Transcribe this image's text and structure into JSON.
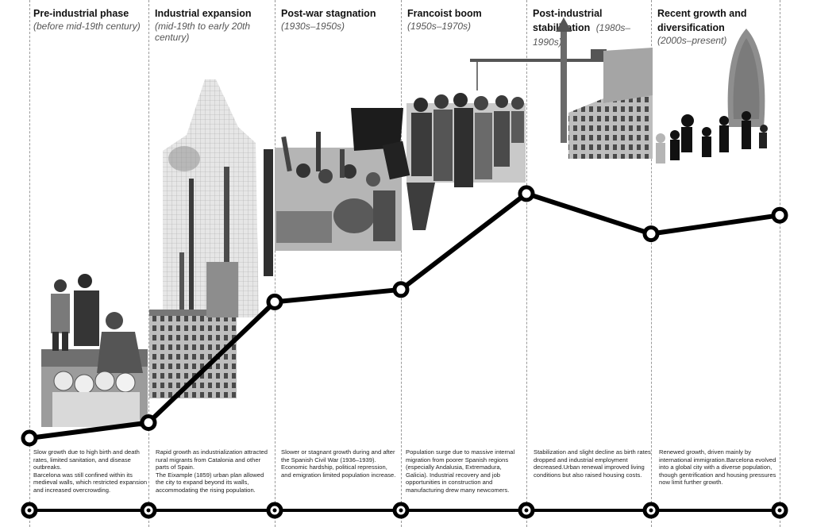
{
  "phases": [
    {
      "title": "Pre-industrial phase",
      "period": "(before mid-19th century)",
      "description": "Slow growth due to high birth and death rates, limited sanitation, and disease outbreaks.\nBarcelona was still confined within its medieval walls, which restricted expansion and increased overcrowding."
    },
    {
      "title": "Industrial expansion",
      "period": "(mid-19th to early 20th century)",
      "description": "Rapid growth as industrialization attracted rural migrants from Catalonia and other parts of Spain.\nThe Eixample (1859) urban plan allowed the city to expand beyond its walls, accommodating the rising population."
    },
    {
      "title": "Post-war stagnation",
      "period": "(1930s–1950s)",
      "description": "Slower or stagnant growth during and after the Spanish Civil War (1936–1939). Economic hardship, political repression, and emigration limited population increase."
    },
    {
      "title": "Francoist boom",
      "period": "(1950s–1970s)",
      "description": "Population surge due to massive internal migration from poorer Spanish regions (especially Andalusia, Extremadura, Galicia). Industrial recovery and job opportunities in construction and manufacturing drew many newcomers."
    },
    {
      "title": "Post-industrial stabilization",
      "period": "(1980s–1990s)",
      "description": "Stabilization and slight decline as birth rates dropped and industrial employment decreased.Urban renewal improved living conditions but also raised housing costs."
    },
    {
      "title": "Recent growth and diversification",
      "period": "(2000s–present)",
      "description": "Renewed growth, driven mainly by international immigration.Barcelona evolved into a global city with a diverse population, though gentrification and housing pressures now limit further growth."
    }
  ],
  "chart_data": {
    "type": "line",
    "trend_points": [
      0.0,
      0.05,
      0.44,
      0.48,
      0.79,
      0.66,
      0.72
    ]
  },
  "colors": {
    "line": "#000000",
    "node_fill": "#ffffff",
    "photo_dark": "#2b2b2b",
    "photo_mid": "#8a8a8a",
    "photo_light": "#cfcfcf"
  },
  "icons": {
    "nodes": "circle-node-icon"
  }
}
